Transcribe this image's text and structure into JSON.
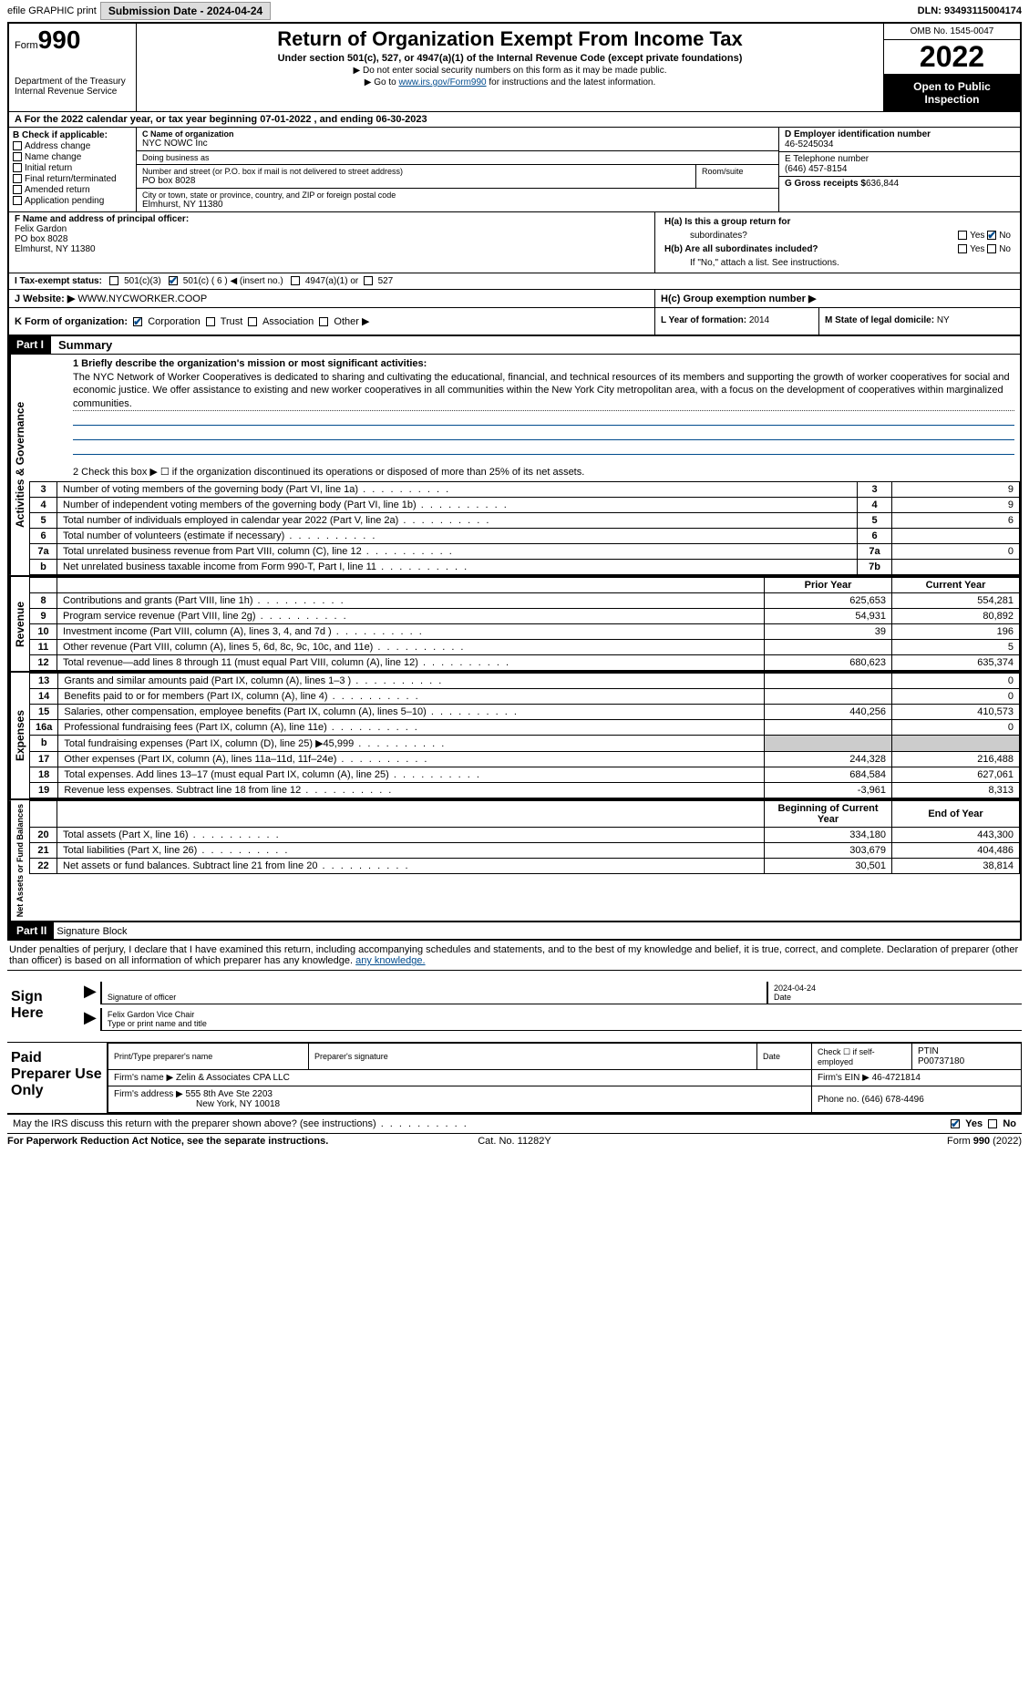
{
  "topbar": {
    "efile": "efile GRAPHIC print",
    "submission": "Submission Date - 2024-04-24",
    "dln": "DLN: 93493115004174"
  },
  "header": {
    "form_label": "Form",
    "form_num": "990",
    "dept": "Department of the Treasury",
    "irs": "Internal Revenue Service",
    "title": "Return of Organization Exempt From Income Tax",
    "sub": "Under section 501(c), 527, or 4947(a)(1) of the Internal Revenue Code (except private foundations)",
    "note1": "▶ Do not enter social security numbers on this form as it may be made public.",
    "note2_pre": "▶ Go to ",
    "note2_link": "www.irs.gov/Form990",
    "note2_post": " for instructions and the latest information.",
    "omb": "OMB No. 1545-0047",
    "year": "2022",
    "open": "Open to Public Inspection"
  },
  "rowA": {
    "pre": "A For the 2022 calendar year, or tax year beginning ",
    "begin": "07-01-2022",
    "mid": " , and ending ",
    "end": "06-30-2023"
  },
  "boxB": {
    "title": "B Check if applicable:",
    "addr": "Address change",
    "name": "Name change",
    "initial": "Initial return",
    "final": "Final return/terminated",
    "amended": "Amended return",
    "app": "Application pending"
  },
  "boxC": {
    "name_lbl": "C Name of organization",
    "name": "NYC NOWC Inc",
    "dba_lbl": "Doing business as",
    "dba": "",
    "addr_lbl": "Number and street (or P.O. box if mail is not delivered to street address)",
    "addr": "PO box 8028",
    "room_lbl": "Room/suite",
    "room": "",
    "city_lbl": "City or town, state or province, country, and ZIP or foreign postal code",
    "city": "Elmhurst, NY  11380"
  },
  "boxD": {
    "ein_lbl": "D Employer identification number",
    "ein": "46-5245034",
    "phone_lbl": "E Telephone number",
    "phone": "(646) 457-8154",
    "gross_lbl": "G Gross receipts $",
    "gross": "636,844"
  },
  "boxF": {
    "lbl": "F Name and address of principal officer:",
    "name": "Felix Gardon",
    "addr1": "PO box 8028",
    "addr2": "Elmhurst, NY  11380"
  },
  "boxH": {
    "ha": "H(a)  Is this a group return for",
    "ha2": "subordinates?",
    "hb": "H(b)  Are all subordinates included?",
    "hb2": "If \"No,\" attach a list. See instructions.",
    "hc": "H(c)  Group exemption number ▶",
    "yes": "Yes",
    "no": "No"
  },
  "rowI": {
    "lbl": "I    Tax-exempt status:",
    "c3": "501(c)(3)",
    "c": "501(c) ( 6 ) ◀ (insert no.)",
    "a1": "4947(a)(1) or",
    "s527": "527"
  },
  "rowJ": {
    "lbl": "J   Website: ▶",
    "val": "WWW.NYCWORKER.COOP"
  },
  "rowK": {
    "lbl": "K Form of organization:",
    "corp": "Corporation",
    "trust": "Trust",
    "assoc": "Association",
    "other": "Other ▶"
  },
  "rowL": {
    "lbl": "L Year of formation:",
    "val": "2014"
  },
  "rowM": {
    "lbl": "M State of legal domicile:",
    "val": "NY"
  },
  "part1": {
    "hdr": "Part I",
    "title": "Summary",
    "line1_lbl": "1 Briefly describe the organization's mission or most significant activities:",
    "mission": "The NYC Network of Worker Cooperatives is dedicated to sharing and cultivating the educational, financial, and technical resources of its members and supporting the growth of worker cooperatives for social and economic justice. We offer assistance to existing and new worker cooperatives in all communities within the New York City metropolitan area, with a focus on the development of cooperatives within marginalized communities.",
    "line2": "2   Check this box ▶ ☐  if the organization discontinued its operations or disposed of more than 25% of its net assets."
  },
  "vert": {
    "gov": "Activities & Governance",
    "rev": "Revenue",
    "exp": "Expenses",
    "net": "Net Assets or Fund Balances"
  },
  "govRows": [
    {
      "n": "3",
      "d": "Number of voting members of the governing body (Part VI, line 1a)",
      "b": "3",
      "v": "9"
    },
    {
      "n": "4",
      "d": "Number of independent voting members of the governing body (Part VI, line 1b)",
      "b": "4",
      "v": "9"
    },
    {
      "n": "5",
      "d": "Total number of individuals employed in calendar year 2022 (Part V, line 2a)",
      "b": "5",
      "v": "6"
    },
    {
      "n": "6",
      "d": "Total number of volunteers (estimate if necessary)",
      "b": "6",
      "v": ""
    },
    {
      "n": "7a",
      "d": "Total unrelated business revenue from Part VIII, column (C), line 12",
      "b": "7a",
      "v": "0"
    },
    {
      "n": "b",
      "d": "Net unrelated business taxable income from Form 990-T, Part I, line 11",
      "b": "7b",
      "v": ""
    }
  ],
  "revHdr": {
    "prior": "Prior Year",
    "curr": "Current Year"
  },
  "revRows": [
    {
      "n": "8",
      "d": "Contributions and grants (Part VIII, line 1h)",
      "p": "625,653",
      "c": "554,281"
    },
    {
      "n": "9",
      "d": "Program service revenue (Part VIII, line 2g)",
      "p": "54,931",
      "c": "80,892"
    },
    {
      "n": "10",
      "d": "Investment income (Part VIII, column (A), lines 3, 4, and 7d )",
      "p": "39",
      "c": "196"
    },
    {
      "n": "11",
      "d": "Other revenue (Part VIII, column (A), lines 5, 6d, 8c, 9c, 10c, and 11e)",
      "p": "",
      "c": "5"
    },
    {
      "n": "12",
      "d": "Total revenue—add lines 8 through 11 (must equal Part VIII, column (A), line 12)",
      "p": "680,623",
      "c": "635,374"
    }
  ],
  "expRows": [
    {
      "n": "13",
      "d": "Grants and similar amounts paid (Part IX, column (A), lines 1–3 )",
      "p": "",
      "c": "0"
    },
    {
      "n": "14",
      "d": "Benefits paid to or for members (Part IX, column (A), line 4)",
      "p": "",
      "c": "0"
    },
    {
      "n": "15",
      "d": "Salaries, other compensation, employee benefits (Part IX, column (A), lines 5–10)",
      "p": "440,256",
      "c": "410,573"
    },
    {
      "n": "16a",
      "d": "Professional fundraising fees (Part IX, column (A), line 11e)",
      "p": "",
      "c": "0"
    },
    {
      "n": "b",
      "d": "Total fundraising expenses (Part IX, column (D), line 25) ▶45,999",
      "p": "__shade__",
      "c": "__shade__"
    },
    {
      "n": "17",
      "d": "Other expenses (Part IX, column (A), lines 11a–11d, 11f–24e)",
      "p": "244,328",
      "c": "216,488"
    },
    {
      "n": "18",
      "d": "Total expenses. Add lines 13–17 (must equal Part IX, column (A), line 25)",
      "p": "684,584",
      "c": "627,061"
    },
    {
      "n": "19",
      "d": "Revenue less expenses. Subtract line 18 from line 12",
      "p": "-3,961",
      "c": "8,313"
    }
  ],
  "netHdr": {
    "b": "Beginning of Current Year",
    "e": "End of Year"
  },
  "netRows": [
    {
      "n": "20",
      "d": "Total assets (Part X, line 16)",
      "p": "334,180",
      "c": "443,300"
    },
    {
      "n": "21",
      "d": "Total liabilities (Part X, line 26)",
      "p": "303,679",
      "c": "404,486"
    },
    {
      "n": "22",
      "d": "Net assets or fund balances. Subtract line 21 from line 20",
      "p": "30,501",
      "c": "38,814"
    }
  ],
  "part2": {
    "hdr": "Part II",
    "title": "Signature Block",
    "intro": "Under penalties of perjury, I declare that I have examined this return, including accompanying schedules and statements, and to the best of my knowledge and belief, it is true, correct, and complete. Declaration of preparer (other than officer) is based on all information of which preparer has any knowledge."
  },
  "sign": {
    "lbl": "Sign Here",
    "sig_lbl": "Signature of officer",
    "date_lbl": "Date",
    "date": "2024-04-24",
    "name": "Felix Gardon  Vice Chair",
    "name_lbl": "Type or print name and title"
  },
  "prep": {
    "lbl": "Paid Preparer Use Only",
    "pname_lbl": "Print/Type preparer's name",
    "psig_lbl": "Preparer's signature",
    "pdate_lbl": "Date",
    "pself_lbl": "Check ☐ if self-employed",
    "ptin_lbl": "PTIN",
    "ptin": "P00737180",
    "firm_lbl": "Firm's name   ▶",
    "firm": "Zelin & Associates CPA LLC",
    "fein_lbl": "Firm's EIN ▶",
    "fein": "46-4721814",
    "faddr_lbl": "Firm's address ▶",
    "faddr1": "555 8th Ave Ste 2203",
    "faddr2": "New York, NY  10018",
    "fphone_lbl": "Phone no.",
    "fphone": "(646) 678-4496"
  },
  "discuss": {
    "q": "May the IRS discuss this return with the preparer shown above? (see instructions)",
    "yes": "Yes",
    "no": "No"
  },
  "footer": {
    "l": "For Paperwork Reduction Act Notice, see the separate instructions.",
    "c": "Cat. No. 11282Y",
    "r": "Form 990 (2022)"
  }
}
